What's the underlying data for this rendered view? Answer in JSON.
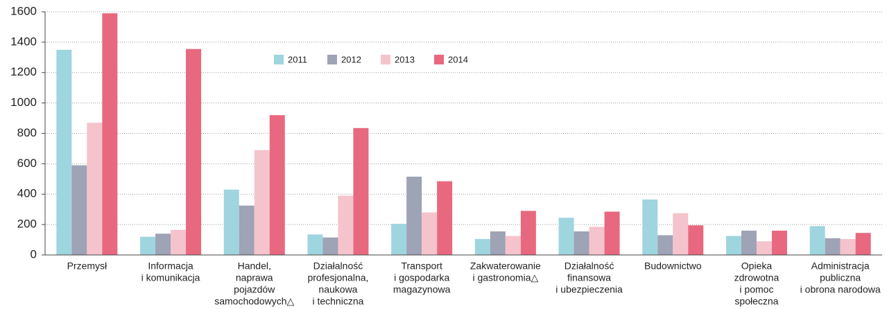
{
  "chart_data": {
    "type": "bar",
    "categories": [
      [
        "Przemysł"
      ],
      [
        "Informacja",
        "i komunikacja"
      ],
      [
        "Handel,",
        "naprawa",
        "pojazdów",
        "samochodowych△"
      ],
      [
        "Działalność",
        "profesjonalna,",
        "naukowa",
        "i techniczna"
      ],
      [
        "Transport",
        "i gospodarka",
        "magazynowa"
      ],
      [
        "Zakwaterowanie",
        "i gastronomia△"
      ],
      [
        "Działalność",
        "finansowa",
        "i ubezpieczenia"
      ],
      [
        "Budownictwo"
      ],
      [
        "Opieka",
        "zdrowotna",
        "i pomoc",
        "społeczna"
      ],
      [
        "Administracja",
        "publiczna",
        "i obrona narodowa"
      ]
    ],
    "series": [
      {
        "name": "2011",
        "color": "#9fd5df",
        "values": [
          1350,
          120,
          430,
          135,
          205,
          105,
          245,
          365,
          125,
          190
        ]
      },
      {
        "name": "2012",
        "color": "#9ea3b5",
        "values": [
          590,
          140,
          325,
          115,
          515,
          155,
          155,
          130,
          160,
          110
        ]
      },
      {
        "name": "2013",
        "color": "#f5c3cc",
        "values": [
          870,
          165,
          690,
          390,
          280,
          125,
          185,
          275,
          90,
          105
        ]
      },
      {
        "name": "2014",
        "color": "#e8697f",
        "values": [
          1590,
          1355,
          920,
          835,
          485,
          290,
          285,
          195,
          160,
          145
        ]
      }
    ],
    "ylim": [
      0,
      1600
    ],
    "yticks": [
      0,
      200,
      400,
      600,
      800,
      1000,
      1200,
      1400,
      1600
    ],
    "grid": true
  }
}
